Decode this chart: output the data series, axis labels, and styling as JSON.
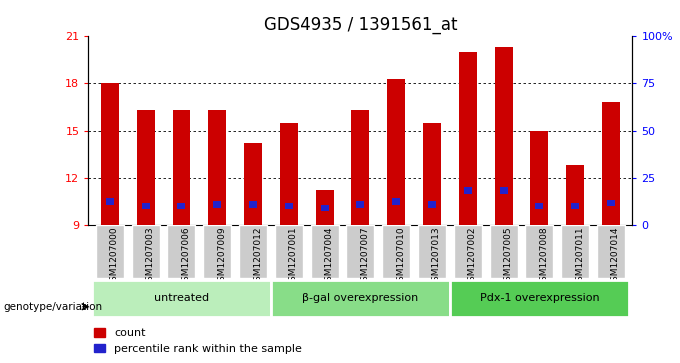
{
  "title": "GDS4935 / 1391561_at",
  "samples": [
    "GSM1207000",
    "GSM1207003",
    "GSM1207006",
    "GSM1207009",
    "GSM1207012",
    "GSM1207001",
    "GSM1207004",
    "GSM1207007",
    "GSM1207010",
    "GSM1207013",
    "GSM1207002",
    "GSM1207005",
    "GSM1207008",
    "GSM1207011",
    "GSM1207014"
  ],
  "counts": [
    18.0,
    16.3,
    16.3,
    16.3,
    14.2,
    15.5,
    11.2,
    16.3,
    18.3,
    15.5,
    20.0,
    20.3,
    15.0,
    12.8,
    16.8
  ],
  "percentile_ranks": [
    10.5,
    10.2,
    10.2,
    10.3,
    10.3,
    10.2,
    10.1,
    10.3,
    10.5,
    10.3,
    11.2,
    11.2,
    10.2,
    10.2,
    10.4
  ],
  "groups": [
    {
      "label": "untreated",
      "start": 0,
      "end": 5,
      "color": "#bbeebb"
    },
    {
      "label": "β-gal overexpression",
      "start": 5,
      "end": 10,
      "color": "#88dd88"
    },
    {
      "label": "Pdx-1 overexpression",
      "start": 10,
      "end": 15,
      "color": "#55cc55"
    }
  ],
  "ylim_left": [
    9,
    21
  ],
  "ylim_right": [
    0,
    100
  ],
  "yticks_left": [
    9,
    12,
    15,
    18,
    21
  ],
  "ytick_labels_left": [
    "9",
    "12",
    "15",
    "18",
    "21"
  ],
  "yticks_right": [
    0,
    25,
    50,
    75,
    100
  ],
  "ytick_labels_right": [
    "0",
    "25",
    "50",
    "75",
    "100%"
  ],
  "bar_color": "#cc0000",
  "marker_color": "#2222cc",
  "bar_width": 0.5,
  "legend_count": "count",
  "legend_percentile": "percentile rank within the sample",
  "genotype_label": "genotype/variation",
  "title_fontsize": 12,
  "tick_fontsize": 8
}
